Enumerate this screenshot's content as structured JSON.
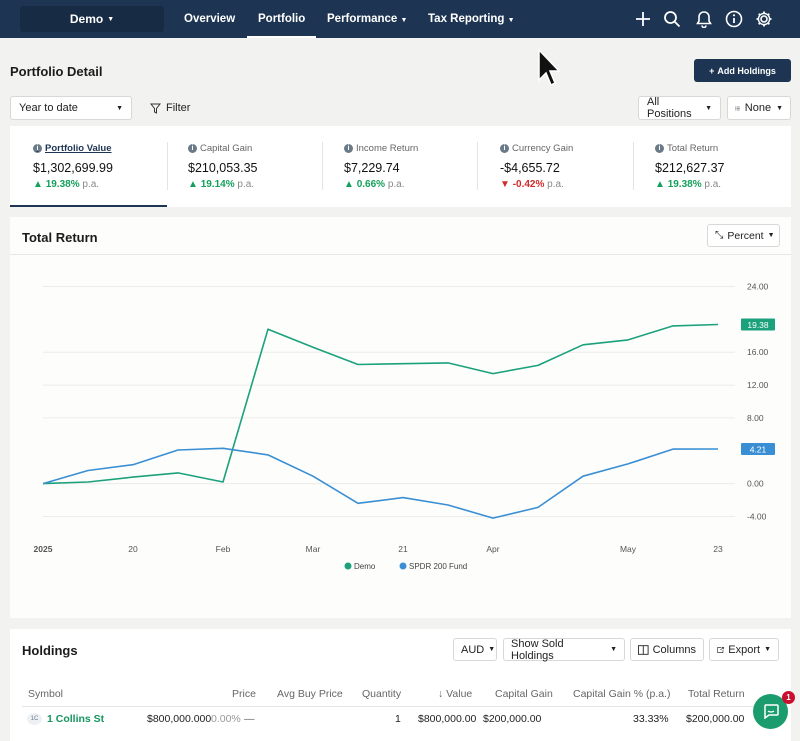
{
  "nav": {
    "portfolio_name": "Demo",
    "links": [
      "Overview",
      "Portfolio",
      "Performance",
      "Tax Reporting"
    ],
    "active_link": "Portfolio",
    "icons": [
      "plus-icon",
      "search-icon",
      "bell-icon",
      "info-icon",
      "gear-icon"
    ]
  },
  "page": {
    "title": "Portfolio Detail",
    "add_button": "Add Holdings",
    "period": "Year to date",
    "filter": "Filter",
    "positions": "All Positions",
    "grouping": "None"
  },
  "stats": [
    {
      "label": "Portfolio Value",
      "value": "$1,302,699.99",
      "change": "19.38%",
      "direction": "up",
      "suffix": "p.a."
    },
    {
      "label": "Capital Gain",
      "value": "$210,053.35",
      "change": "19.14%",
      "direction": "up",
      "suffix": "p.a."
    },
    {
      "label": "Income Return",
      "value": "$7,229.74",
      "change": "0.66%",
      "direction": "up",
      "suffix": "p.a."
    },
    {
      "label": "Currency Gain",
      "value": "-$4,655.72",
      "change": "-0.42%",
      "direction": "down",
      "suffix": "p.a."
    },
    {
      "label": "Total Return",
      "value": "$212,627.37",
      "change": "19.38%",
      "direction": "up",
      "suffix": "p.a."
    }
  ],
  "chart": {
    "title": "Total Return",
    "mode_button": "Percent"
  },
  "chart_data": {
    "type": "line",
    "title": "Total Return",
    "x_tick_labels": [
      "2025",
      "20",
      "Feb",
      "Mar",
      "21",
      "Apr",
      "May",
      "23"
    ],
    "y_ticks": [
      24,
      16,
      12,
      8,
      0,
      -4
    ],
    "y_tick_labels": [
      "24.00",
      "16.00",
      "12.00",
      "8.00",
      "0.00",
      "-4.00"
    ],
    "ylim": [
      -6.5,
      26.5
    ],
    "grid": true,
    "legend_position": "bottom",
    "series": [
      {
        "name": "Demo",
        "color": "#1ba17c",
        "end_label": "19.38",
        "values": [
          0.0,
          0.2,
          0.8,
          1.3,
          0.2,
          18.8,
          16.6,
          14.5,
          14.6,
          14.7,
          13.4,
          14.4,
          16.9,
          17.5,
          19.2,
          19.38
        ]
      },
      {
        "name": "SPDR 200 Fund",
        "color": "#3a8fd4",
        "end_label": "4.21",
        "values": [
          0.0,
          1.6,
          2.3,
          4.1,
          4.3,
          3.5,
          0.9,
          -2.4,
          -1.7,
          -2.6,
          -4.2,
          -2.9,
          0.9,
          2.4,
          4.2,
          4.21
        ]
      }
    ]
  },
  "holdings": {
    "title": "Holdings",
    "currency": "AUD",
    "show_sold": "Show Sold Holdings",
    "columns_button": "Columns",
    "export_button": "Export",
    "headers": [
      "Symbol",
      "Price",
      "Avg Buy Price",
      "Quantity",
      "Value",
      "Capital Gain",
      "Capital Gain % (p.a.)",
      "Total Return"
    ],
    "rows": [
      {
        "badge": "1C",
        "symbol": "1 Collins St",
        "price": "$800,000.000",
        "price_change": "0.00%",
        "avg_buy": "—",
        "quantity": "1",
        "value": "$800,000.00",
        "capital_gain": "$200,000.00",
        "capital_gain_pct": "33.33%",
        "total_return": "$200,000.00"
      }
    ]
  },
  "chat": {
    "badge_count": "1"
  }
}
